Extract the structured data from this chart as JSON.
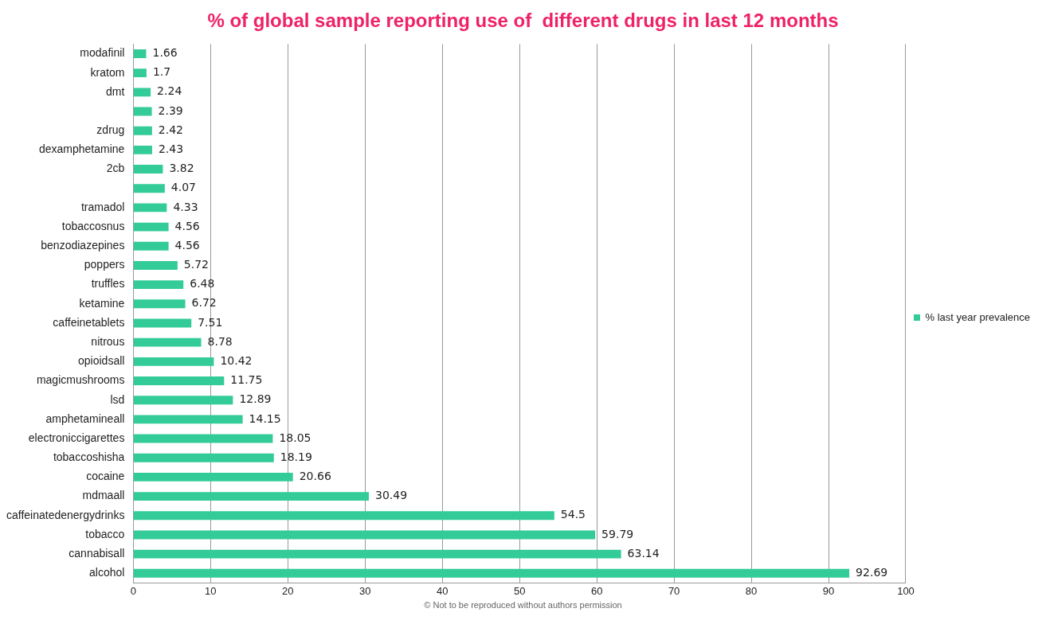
{
  "chart_data": {
    "type": "bar",
    "orientation": "horizontal",
    "title": "% of global sample reporting use of  different drugs in last 12 months",
    "categories": [
      "modafinil",
      "kratom",
      "dmt",
      null,
      "zdrug",
      "dexamphetamine",
      "2cb",
      null,
      "tramadol",
      "tobaccosnus",
      "benzodiazepines",
      "poppers",
      "truffles",
      "ketamine",
      "caffeinetablets",
      "nitrous",
      "opioidsall",
      "magicmushrooms",
      "lsd",
      "amphetamineall",
      "electroniccigarettes",
      "tobaccoshisha",
      "cocaine",
      "mdmaall",
      "caffeinatedenergydrinks",
      "tobacco",
      "cannabisall",
      "alcohol"
    ],
    "series": [
      {
        "name": "% last year prevalence",
        "color": "#33cc99",
        "values": [
          1.66,
          1.7,
          2.24,
          2.39,
          2.42,
          2.43,
          3.82,
          4.07,
          4.33,
          4.56,
          4.56,
          5.72,
          6.48,
          6.72,
          7.51,
          8.78,
          10.42,
          11.75,
          12.89,
          14.15,
          18.05,
          18.19,
          20.66,
          30.49,
          54.5,
          59.79,
          63.14,
          92.69
        ]
      }
    ],
    "xlim": [
      0,
      100
    ],
    "xticks": [
      0,
      10,
      20,
      30,
      40,
      50,
      60,
      70,
      80,
      90,
      100
    ],
    "grid": "x",
    "legend": "right",
    "data_labels": true,
    "annotations": [
      "© Not to be reproduced without authors permission"
    ]
  }
}
